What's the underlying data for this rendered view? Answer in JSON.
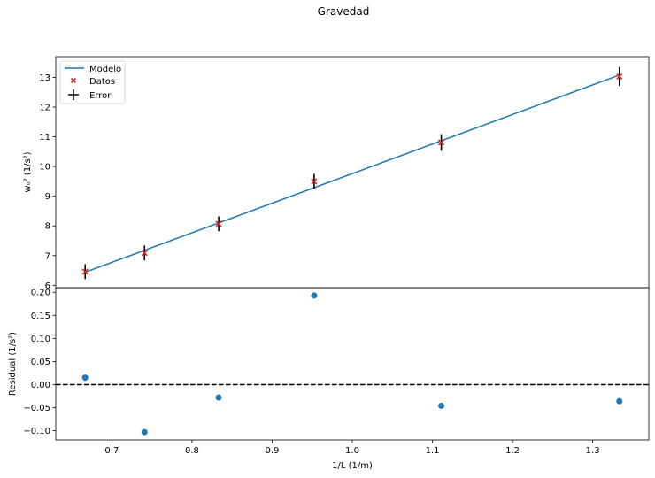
{
  "title": "Gravedad",
  "chart_data": [
    {
      "type": "scatter",
      "ylabel": "w₀² (1/s²)",
      "xlim": [
        0.63,
        1.37
      ],
      "ylim": [
        5.92,
        13.7
      ],
      "yticks": [
        "6",
        "7",
        "8",
        "9",
        "10",
        "11",
        "12",
        "13"
      ],
      "legend": {
        "placement": "top-left",
        "entries": [
          "Modelo",
          "Datos",
          "Error"
        ]
      },
      "model": {
        "name": "Modelo",
        "color": "#1f77b4",
        "x": [
          0.6667,
          1.3333
        ],
        "y": [
          6.44,
          13.08
        ]
      },
      "data": {
        "name": "Datos",
        "color": "#d62728",
        "x": [
          0.6667,
          0.7407,
          0.8333,
          0.9524,
          1.1111,
          1.3333
        ],
        "y": [
          6.46,
          7.09,
          8.07,
          9.5,
          10.81,
          13.03
        ],
        "yerr": [
          0.25,
          0.25,
          0.25,
          0.25,
          0.28,
          0.32
        ]
      },
      "error": {
        "name": "Error",
        "color": "#000000"
      }
    },
    {
      "type": "scatter",
      "ylabel": "Residual (1/s²)",
      "xlabel": "1/L (1/m)",
      "xlim": [
        0.63,
        1.37
      ],
      "ylim": [
        -0.12,
        0.21
      ],
      "xticks": [
        "0.7",
        "0.8",
        "0.9",
        "1.0",
        "1.1",
        "1.2",
        "1.3"
      ],
      "yticks": [
        "−0.10",
        "−0.05",
        "0.00",
        "0.05",
        "0.10",
        "0.15",
        "0.20"
      ],
      "residuals": {
        "color": "#1f77b4",
        "x": [
          0.6667,
          0.7407,
          0.8333,
          0.9524,
          1.1111,
          1.3333
        ],
        "y": [
          0.015,
          -0.103,
          -0.028,
          0.193,
          -0.046,
          -0.036
        ]
      },
      "zero_line": {
        "y": 0,
        "style": "dashed",
        "color": "#000000"
      }
    }
  ]
}
